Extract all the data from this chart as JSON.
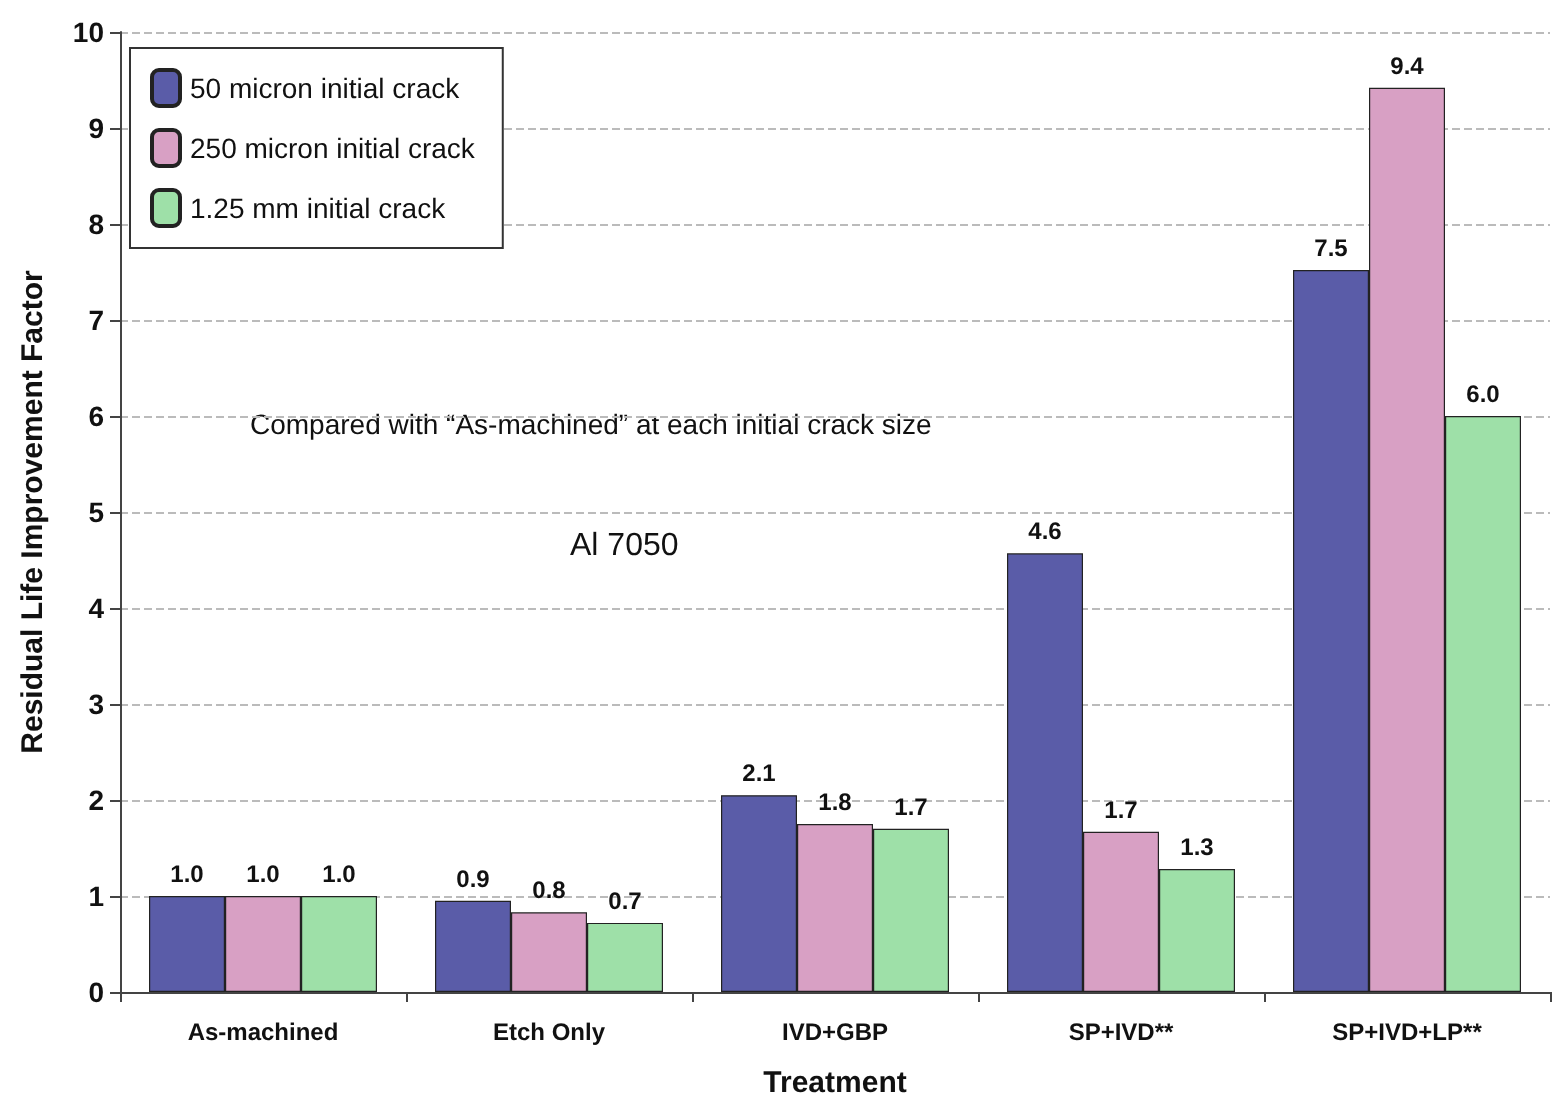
{
  "chart_data": {
    "type": "bar",
    "xlabel": "Treatment",
    "ylabel": "Residual Life Improvement Factor",
    "categories": [
      "As-machined",
      "Etch Only",
      "IVD+GBP",
      "SP+IVD**",
      "SP+IVD+LP**"
    ],
    "series": [
      {
        "name": "50 micron initial crack",
        "color": "#5a5ca8",
        "values": [
          1.0,
          0.95,
          2.05,
          4.57,
          7.52
        ],
        "value_labels": [
          "1.0",
          "0.9",
          "2.1",
          "4.6",
          "7.5"
        ]
      },
      {
        "name": "250 micron initial crack",
        "color": "#d8a0c4",
        "values": [
          1.0,
          0.83,
          1.75,
          1.67,
          9.42
        ],
        "value_labels": [
          "1.0",
          "0.8",
          "1.8",
          "1.7",
          "9.4"
        ]
      },
      {
        "name": "1.25 mm initial crack",
        "color": "#9ee0a8",
        "values": [
          1.0,
          0.72,
          1.7,
          1.28,
          6.0
        ],
        "value_labels": [
          "1.0",
          "0.7",
          "1.7",
          "1.3",
          "6.0"
        ]
      }
    ],
    "ylim": [
      0,
      10
    ],
    "yticks": [
      0,
      1,
      2,
      3,
      4,
      5,
      6,
      7,
      8,
      9,
      10
    ],
    "grid": "y",
    "legend": "top left",
    "annotations": [
      "Compared with “As-machined” at each initial crack size",
      "Al 7050"
    ]
  }
}
